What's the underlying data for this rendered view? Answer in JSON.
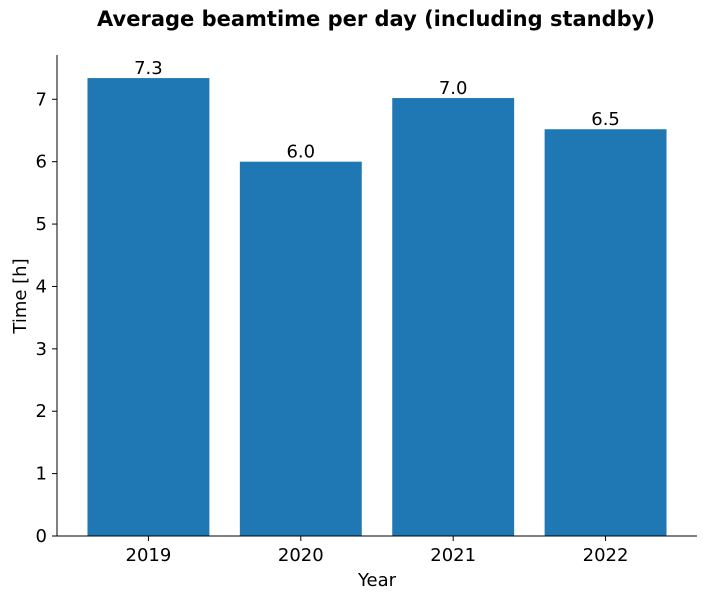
{
  "chart_data": {
    "type": "bar",
    "title": "Average beamtime per day (including standby)",
    "xlabel": "Year",
    "ylabel": "Time [h]",
    "categories": [
      "2019",
      "2020",
      "2021",
      "2022"
    ],
    "values": [
      7.34,
      6.0,
      7.02,
      6.52
    ],
    "data_labels": [
      "7.3",
      "6.0",
      "7.0",
      "6.5"
    ],
    "yticks": [
      0,
      1,
      2,
      3,
      4,
      5,
      6,
      7
    ],
    "ylim": [
      0,
      7.71
    ],
    "grid": false,
    "bar_color": "#1f77b4"
  }
}
